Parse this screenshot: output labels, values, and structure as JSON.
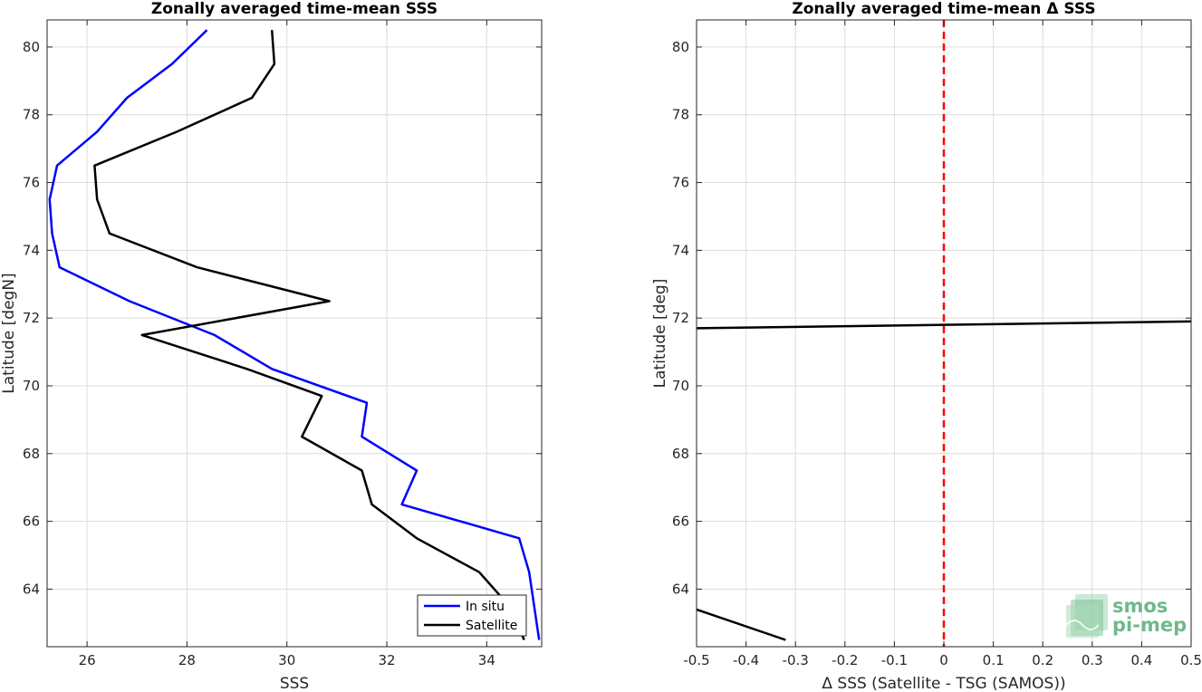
{
  "chart_data": [
    {
      "type": "line",
      "title": "Zonally averaged time-mean SSS",
      "xlabel": "SSS",
      "ylabel": "Latitude [degN]",
      "xlim": [
        25.2,
        35.1
      ],
      "ylim": [
        62.3,
        80.8
      ],
      "xticks": [
        26,
        28,
        30,
        32,
        34
      ],
      "yticks": [
        64,
        66,
        68,
        70,
        72,
        74,
        76,
        78,
        80
      ],
      "grid": true,
      "legend_position": "bottom-right",
      "series": [
        {
          "name": "In situ",
          "color": "#0000ff",
          "x": [
            35.05,
            34.95,
            34.85,
            34.65,
            32.3,
            32.6,
            31.5,
            31.6,
            29.7,
            28.55,
            26.85,
            25.45,
            25.3,
            25.25,
            25.4,
            26.2,
            26.8,
            27.7,
            28.4
          ],
          "y": [
            62.5,
            63.5,
            64.5,
            65.5,
            66.5,
            67.5,
            68.5,
            69.5,
            70.5,
            71.5,
            72.5,
            73.5,
            74.5,
            75.5,
            76.5,
            77.5,
            78.5,
            79.5,
            80.5
          ]
        },
        {
          "name": "Satellite",
          "color": "#000000",
          "x": [
            34.75,
            34.45,
            33.85,
            32.6,
            31.7,
            31.5,
            30.3,
            30.7,
            29.2,
            27.1,
            30.85,
            28.2,
            26.45,
            26.2,
            26.15,
            27.8,
            29.3,
            29.75,
            29.7
          ],
          "y": [
            62.5,
            63.5,
            64.5,
            65.5,
            66.5,
            67.5,
            68.5,
            69.7,
            70.5,
            71.5,
            72.5,
            73.5,
            74.5,
            75.5,
            76.5,
            77.5,
            78.5,
            79.5,
            80.5
          ]
        }
      ]
    },
    {
      "type": "line",
      "title": "Zonally averaged time-mean Δ SSS",
      "xlabel": "Δ SSS (Satellite - TSG (SAMOS))",
      "ylabel": "Latitude [deg]",
      "xlim": [
        -0.5,
        0.5
      ],
      "ylim": [
        62.3,
        80.8
      ],
      "xticks": [
        "-0.5",
        "-0.4",
        "-0.3",
        "-0.2",
        "-0.1",
        "0",
        "0.1",
        "0.2",
        "0.3",
        "0.4",
        "0.5"
      ],
      "yticks": [
        64,
        66,
        68,
        70,
        72,
        74,
        76,
        78,
        80
      ],
      "grid": true,
      "reference_line": {
        "x": 0,
        "color": "#ff0000",
        "style": "dashed"
      },
      "series": [
        {
          "color": "#000000",
          "x": [
            -0.5,
            0.5
          ],
          "y": [
            71.7,
            71.9
          ]
        },
        {
          "color": "#000000",
          "x": [
            -0.5,
            -0.32
          ],
          "y": [
            63.4,
            62.5
          ]
        }
      ]
    }
  ],
  "legend": {
    "items": [
      "In situ",
      "Satellite"
    ]
  },
  "watermark": {
    "line1": "smos",
    "line2": "pi-mep",
    "color": "#6fb98a"
  }
}
